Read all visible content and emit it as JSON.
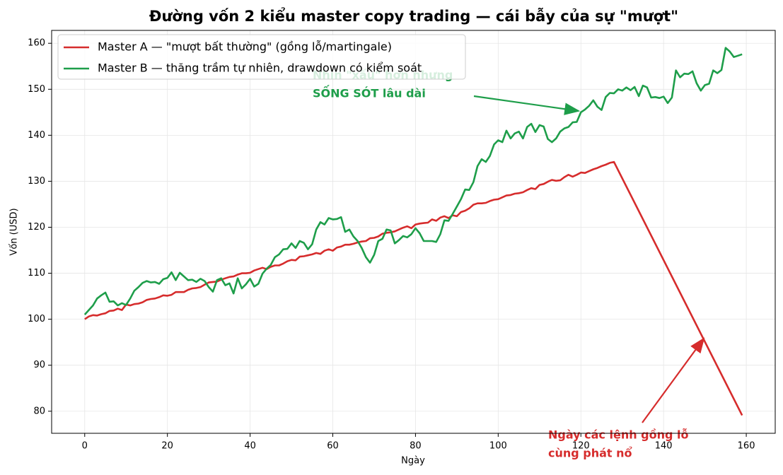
{
  "chart_data": {
    "type": "line",
    "title": "Đường vốn 2 kiểu master copy trading — cái bẫy của sự \"mượt\"",
    "xlabel": "Ngày",
    "ylabel": "Vốn (USD)",
    "xlim": [
      -8,
      167
    ],
    "ylim": [
      75.2,
      162.8
    ],
    "xticks": [
      0,
      20,
      40,
      60,
      80,
      100,
      120,
      140,
      160
    ],
    "yticks": [
      80,
      90,
      100,
      110,
      120,
      130,
      140,
      150,
      160
    ],
    "grid": true,
    "legend": "upper left",
    "series": [
      {
        "name": "Master A — \"mượt bất thường\" (gồng lỗ/martingale)",
        "color": "#d62c2c",
        "x": [
          0,
          1,
          2,
          3,
          4,
          5,
          6,
          7,
          8,
          9,
          10,
          11,
          12,
          13,
          14,
          15,
          16,
          17,
          18,
          19,
          20,
          21,
          22,
          23,
          24,
          25,
          26,
          27,
          28,
          29,
          30,
          31,
          32,
          33,
          34,
          35,
          36,
          37,
          38,
          39,
          40,
          41,
          42,
          43,
          44,
          45,
          46,
          47,
          48,
          49,
          50,
          51,
          52,
          53,
          54,
          55,
          56,
          57,
          58,
          59,
          60,
          61,
          62,
          63,
          64,
          65,
          66,
          67,
          68,
          69,
          70,
          71,
          72,
          73,
          74,
          75,
          76,
          77,
          78,
          79,
          80,
          81,
          82,
          83,
          84,
          85,
          86,
          87,
          88,
          89,
          90,
          91,
          92,
          93,
          94,
          95,
          96,
          97,
          98,
          99,
          100,
          101,
          102,
          103,
          104,
          105,
          106,
          107,
          108,
          109,
          110,
          111,
          112,
          113,
          114,
          115,
          116,
          117,
          118,
          119,
          120,
          121,
          122,
          123,
          124,
          125,
          126,
          127,
          128,
          159
        ],
        "values": [
          100.0,
          100.6,
          100.9,
          100.8,
          101.1,
          101.3,
          101.8,
          101.9,
          102.3,
          102.0,
          103.2,
          103.0,
          103.3,
          103.4,
          103.7,
          104.2,
          104.4,
          104.5,
          104.8,
          105.2,
          105.1,
          105.3,
          105.9,
          105.9,
          105.9,
          106.4,
          106.7,
          106.8,
          107.0,
          107.5,
          108.0,
          108.1,
          108.2,
          108.6,
          108.9,
          109.2,
          109.3,
          109.7,
          110.0,
          110.0,
          110.1,
          110.6,
          110.9,
          111.2,
          110.9,
          111.4,
          111.7,
          111.7,
          112.1,
          112.6,
          112.9,
          112.8,
          113.6,
          113.7,
          113.9,
          114.1,
          114.4,
          114.2,
          114.9,
          115.2,
          114.9,
          115.6,
          115.8,
          116.2,
          116.2,
          116.4,
          116.7,
          116.9,
          117.0,
          117.6,
          117.7,
          118.0,
          118.6,
          118.8,
          118.9,
          119.1,
          119.5,
          119.9,
          120.2,
          119.8,
          120.6,
          120.8,
          120.9,
          121.0,
          121.7,
          121.4,
          122.1,
          122.4,
          122.0,
          122.6,
          122.4,
          123.3,
          123.6,
          124.1,
          124.9,
          125.2,
          125.2,
          125.3,
          125.7,
          126.0,
          126.1,
          126.5,
          126.9,
          127.0,
          127.3,
          127.4,
          127.6,
          128.1,
          128.5,
          128.3,
          129.2,
          129.4,
          129.9,
          130.3,
          130.1,
          130.2,
          130.9,
          131.4,
          131.0,
          131.4,
          131.9,
          131.8,
          132.2,
          132.6,
          132.9,
          133.3,
          133.6,
          134.0,
          134.2,
          79.1
        ]
      },
      {
        "name": "Master B — thăng trầm tự nhiên, drawdown có kiểm soát",
        "color": "#1e9e4a",
        "x": [
          0,
          1,
          2,
          3,
          4,
          5,
          6,
          7,
          8,
          9,
          10,
          11,
          12,
          13,
          14,
          15,
          16,
          17,
          18,
          19,
          20,
          21,
          22,
          23,
          24,
          25,
          26,
          27,
          28,
          29,
          30,
          31,
          32,
          33,
          34,
          35,
          36,
          37,
          38,
          39,
          40,
          41,
          42,
          43,
          44,
          45,
          46,
          47,
          48,
          49,
          50,
          51,
          52,
          53,
          54,
          55,
          56,
          57,
          58,
          59,
          60,
          61,
          62,
          63,
          64,
          65,
          66,
          67,
          68,
          69,
          70,
          71,
          72,
          73,
          74,
          75,
          76,
          77,
          78,
          79,
          80,
          81,
          82,
          83,
          84,
          85,
          86,
          87,
          88,
          89,
          90,
          91,
          92,
          93,
          94,
          95,
          96,
          97,
          98,
          99,
          100,
          101,
          102,
          103,
          104,
          105,
          106,
          107,
          108,
          109,
          110,
          111,
          112,
          113,
          114,
          115,
          116,
          117,
          118,
          119,
          120,
          121,
          122,
          123,
          124,
          125,
          126,
          127,
          128,
          129,
          130,
          131,
          132,
          133,
          134,
          135,
          136,
          137,
          138,
          139,
          140,
          141,
          142,
          143,
          144,
          145,
          146,
          147,
          148,
          149,
          150,
          151,
          152,
          153,
          154,
          155,
          156,
          157,
          158,
          159
        ],
        "values": [
          101,
          102,
          103,
          104.5,
          105.2,
          105.8,
          103.8,
          103.9,
          103,
          103.5,
          103.1,
          104.5,
          106.2,
          107,
          107.9,
          108.3,
          108,
          108.1,
          107.7,
          108.7,
          109,
          110.2,
          108.5,
          110.1,
          109.3,
          108.5,
          108.6,
          108.1,
          108.8,
          108.3,
          107,
          106,
          108.5,
          108.9,
          107.4,
          107.8,
          105.6,
          108.9,
          106.7,
          107.6,
          108.8,
          107.1,
          107.7,
          109.9,
          111,
          111.8,
          113.5,
          114.1,
          115.2,
          115.3,
          116.5,
          115.5,
          117,
          116.6,
          115.2,
          116.3,
          119.5,
          121.1,
          120.6,
          122,
          121.7,
          121.8,
          122.2,
          119,
          119.5,
          118,
          117,
          115.5,
          113.5,
          112.3,
          114,
          117,
          117.5,
          119.5,
          119.3,
          116.5,
          117.2,
          118.1,
          117.8,
          118.5,
          119.8,
          118.7,
          117,
          117,
          117,
          116.8,
          118.5,
          121.5,
          121.4,
          122.9,
          124.5,
          126.1,
          128.2,
          128.1,
          129.8,
          133.3,
          134.8,
          134.2,
          135.5,
          138,
          138.9,
          138.5,
          141,
          139.3,
          140.4,
          140.8,
          139.3,
          141.8,
          142.5,
          140.7,
          142.2,
          141.9,
          139.2,
          138.5,
          139.3,
          140.8,
          141.5,
          141.8,
          142.8,
          142.9,
          145,
          145.6,
          146.4,
          147.6,
          146.2,
          145.5,
          148.3,
          149.2,
          149.1,
          150,
          149.7,
          150.4,
          149.8,
          150.5,
          148.5,
          150.8,
          150.4,
          148.2,
          148.3,
          148.1,
          148.4,
          147,
          148.2,
          154.1,
          152.6,
          153.4,
          153.3,
          153.9,
          151.3,
          149.7,
          150.9,
          151.2,
          154.1,
          153.5,
          154.2,
          159,
          158.2,
          157,
          157.3,
          157.6
        ]
      }
    ],
    "annotations": [
      {
        "lines": [
          "Nhìn \"xấu\" hơn nhưng",
          "SỐNG SÓT lâu dài"
        ],
        "color": "#1e9e4a"
      },
      {
        "lines": [
          "Ngày các lệnh gồng lỗ",
          "cùng phát nổ"
        ],
        "color": "#d62c2c"
      }
    ]
  }
}
